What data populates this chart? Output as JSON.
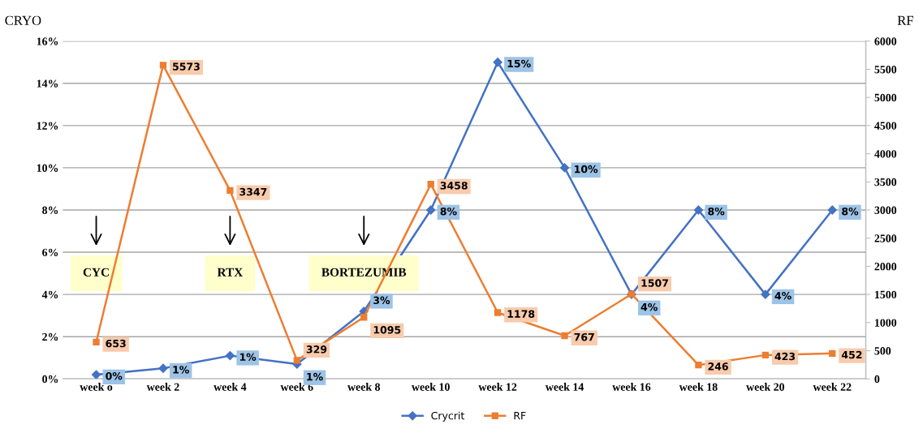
{
  "chart_data": {
    "type": "line",
    "ylabel": "CRYO",
    "y2label": "RF",
    "categories": [
      "week o",
      "week 2",
      "week 4",
      "week 6",
      "week 8",
      "week 10",
      "week 12",
      "week 14",
      "week 16",
      "week 18",
      "week 20",
      "week 22"
    ],
    "series": [
      {
        "name": "Crycrit",
        "color": "#4472c4",
        "marker": "diamond",
        "values": [
          0.2,
          0.5,
          1.1,
          0.7,
          3.2,
          8,
          15,
          10,
          4,
          8,
          4,
          8
        ],
        "value_labels": [
          "0%",
          "1%",
          "1%",
          "1%",
          "3%",
          "8%",
          "15%",
          "10%",
          "4%",
          "8%",
          "4%",
          "8%"
        ]
      },
      {
        "name": "RF",
        "color": "#ed7d31",
        "marker": "square",
        "axis": "y2",
        "values": [
          653,
          5573,
          3347,
          329,
          1095,
          3458,
          1178,
          767,
          1507,
          246,
          423,
          452
        ],
        "value_labels": [
          "653",
          "5573",
          "3347",
          "329",
          "1095",
          "3458",
          "1178",
          "767",
          "1507",
          "246",
          "423",
          "452"
        ]
      }
    ],
    "ylim": [
      0,
      16
    ],
    "yticks": [
      {
        "value": 0,
        "label": "0%"
      },
      {
        "value": 2,
        "label": "2%"
      },
      {
        "value": 4,
        "label": "4%"
      },
      {
        "value": 6,
        "label": "6%"
      },
      {
        "value": 8,
        "label": "8%"
      },
      {
        "value": 10,
        "label": "10%"
      },
      {
        "value": 12,
        "label": "12%"
      },
      {
        "value": 14,
        "label": "14%"
      },
      {
        "value": 16,
        "label": "16%"
      }
    ],
    "y2lim": [
      0,
      6000
    ],
    "y2ticks": [
      0,
      500,
      1000,
      1500,
      2000,
      2500,
      3000,
      3500,
      4000,
      4500,
      5000,
      5500,
      6000
    ],
    "annotations": [
      "CYC",
      "RTX",
      "BORTEZUMIB"
    ],
    "grid": "y",
    "legend": "bottom"
  }
}
